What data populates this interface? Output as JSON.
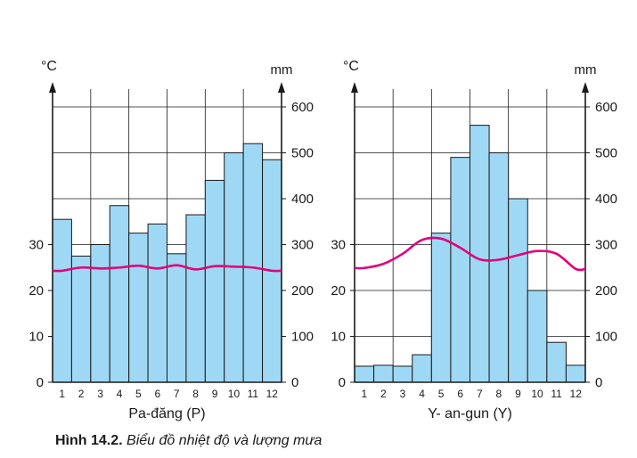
{
  "caption": {
    "label": "Hình 14.2.",
    "title": "Biểu đồ nhiệt độ và lượng mưa"
  },
  "colors": {
    "bar_fill": "#9fd8f4",
    "bar_stroke": "#1a1a1a",
    "temp_line": "#e2007a",
    "grid": "#1a1a1a"
  },
  "chart_data": [
    {
      "type": "bar+line",
      "title": "Pa-đăng (P)",
      "left_axis_unit": "°C",
      "right_axis_unit": "mm",
      "left_ticks": [
        "0",
        "10",
        "20",
        "30"
      ],
      "right_ticks": [
        "0",
        "100",
        "200",
        "300",
        "400",
        "500",
        "600"
      ],
      "months": [
        "1",
        "2",
        "3",
        "4",
        "5",
        "6",
        "7",
        "8",
        "9",
        "10",
        "11",
        "12"
      ],
      "temp_ylim": [
        0,
        60
      ],
      "rain_ylim": [
        0,
        600
      ],
      "rainfall_mm": [
        355,
        275,
        300,
        385,
        325,
        345,
        280,
        365,
        440,
        500,
        520,
        485
      ],
      "temperature_c": [
        24.3,
        25.0,
        24.8,
        25.0,
        25.4,
        24.8,
        25.5,
        24.6,
        25.3,
        25.2,
        25.0,
        24.3
      ]
    },
    {
      "type": "bar+line",
      "title": "Y- an-gun (Y)",
      "left_axis_unit": "°C",
      "right_axis_unit": "mm",
      "left_ticks": [
        "0",
        "10",
        "20",
        "30"
      ],
      "right_ticks": [
        "0",
        "100",
        "200",
        "300",
        "400",
        "500",
        "600"
      ],
      "months": [
        "1",
        "2",
        "3",
        "4",
        "5",
        "6",
        "7",
        "8",
        "9",
        "10",
        "11",
        "12"
      ],
      "temp_ylim": [
        0,
        60
      ],
      "rain_ylim": [
        0,
        600
      ],
      "rainfall_mm": [
        35,
        37,
        35,
        60,
        325,
        490,
        560,
        500,
        400,
        200,
        87,
        37
      ],
      "temperature_c": [
        24.9,
        25.8,
        28.0,
        31.0,
        31.3,
        29.3,
        26.8,
        26.7,
        27.7,
        28.6,
        28.0,
        24.7
      ]
    }
  ]
}
